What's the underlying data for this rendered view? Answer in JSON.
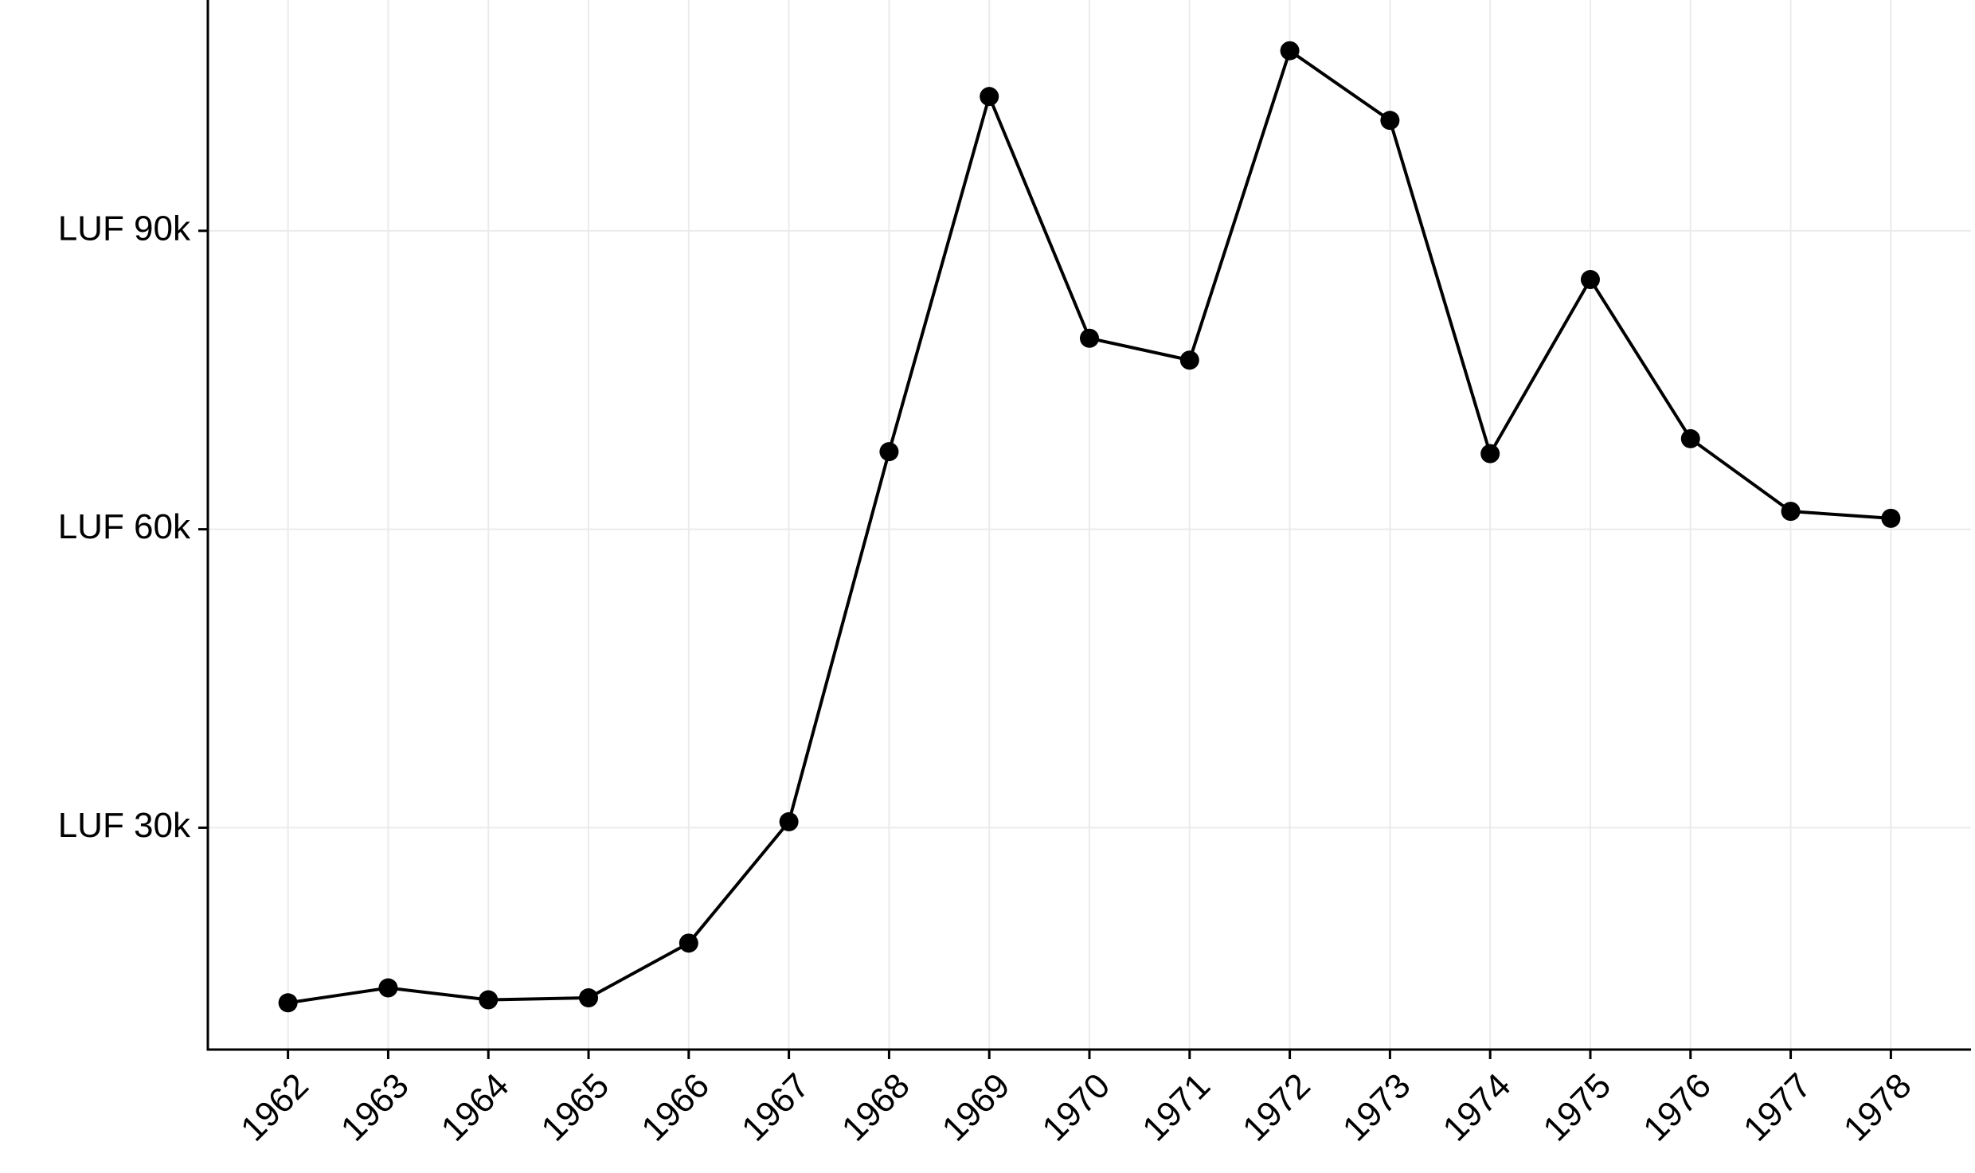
{
  "chart_data": {
    "type": "line",
    "x": [
      1962,
      1963,
      1964,
      1965,
      1966,
      1967,
      1968,
      1969,
      1970,
      1971,
      1972,
      1973,
      1974,
      1975,
      1976,
      1977,
      1978
    ],
    "series": [
      {
        "color": "#000000",
        "values": [
          12400,
          13900,
          12700,
          12900,
          18400,
          30600,
          67800,
          103500,
          79200,
          77000,
          108100,
          101100,
          67600,
          85100,
          69100,
          61800,
          61100
        ]
      }
    ],
    "xlim": [
      1961.2,
      1978.8
    ],
    "xticks": [
      1962,
      1963,
      1964,
      1965,
      1966,
      1967,
      1968,
      1969,
      1970,
      1971,
      1972,
      1973,
      1974,
      1975,
      1976,
      1977,
      1978
    ],
    "ylim": [
      7700,
      113200
    ],
    "yticks": [
      {
        "value": 30000,
        "label": "LUF 30k"
      },
      {
        "value": 60000,
        "label": "LUF 60k"
      },
      {
        "value": 90000,
        "label": "LUF 90k"
      }
    ],
    "grid": true
  }
}
